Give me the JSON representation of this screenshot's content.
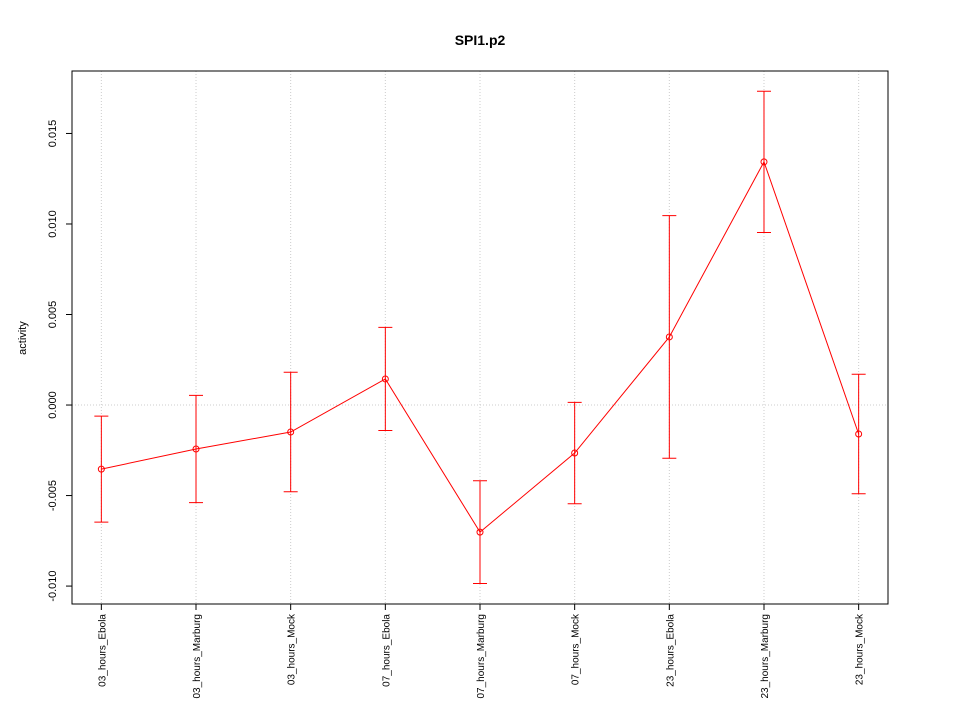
{
  "chart_data": {
    "type": "line",
    "title": "SPI1.p2",
    "y_label": "activity",
    "categories": [
      "03_hours_Ebola",
      "03_hours_Marburg",
      "03_hours_Mock",
      "07_hours_Ebola",
      "07_hours_Marburg",
      "07_hours_Mock",
      "23_hours_Ebola",
      "23_hours_Marburg",
      "23_hours_Mock"
    ],
    "series": [
      {
        "name": "activity",
        "color": "#ff0000",
        "values": [
          -0.00354,
          -0.00243,
          -0.00149,
          0.00144,
          -0.00702,
          -0.00265,
          0.00376,
          0.01343,
          -0.0016
        ],
        "errors": [
          0.00293,
          0.00296,
          0.0033,
          0.00285,
          0.00284,
          0.0028,
          0.0067,
          0.0039,
          0.0033
        ]
      }
    ],
    "ylim": [
      -0.01099,
      0.01845
    ],
    "yticks": [
      {
        "value": -0.01,
        "label": "-0.010"
      },
      -0.005,
      {
        "value": 0,
        "label": "0.000"
      },
      0.005,
      {
        "value": 0.01,
        "label": "0.010"
      },
      0.015
    ],
    "reference_line": 0,
    "grid": true
  }
}
